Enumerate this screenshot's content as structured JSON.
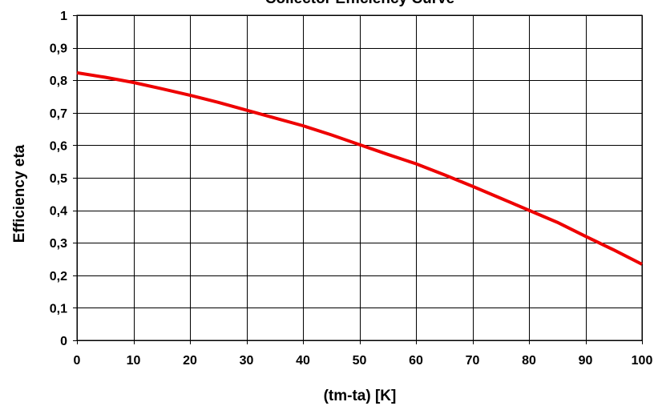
{
  "chart_data": {
    "type": "line",
    "title": "Collector Efficiency Curve",
    "xlabel": "(tm-ta) [K]",
    "ylabel": "Efficiency eta",
    "xlim": [
      0,
      100
    ],
    "ylim": [
      0,
      1
    ],
    "x_ticks": [
      0,
      10,
      20,
      30,
      40,
      50,
      60,
      70,
      80,
      90,
      100
    ],
    "x_tick_labels": [
      "0",
      "10",
      "20",
      "30",
      "40",
      "50",
      "60",
      "70",
      "80",
      "90",
      "100"
    ],
    "y_ticks": [
      0,
      0.1,
      0.2,
      0.3,
      0.4,
      0.5,
      0.6,
      0.7,
      0.8,
      0.9,
      1
    ],
    "y_tick_labels": [
      "0",
      "0,1",
      "0,2",
      "0,3",
      "0,4",
      "0,5",
      "0,6",
      "0,7",
      "0,8",
      "0,9",
      "1"
    ],
    "grid": true,
    "legend": "none",
    "series": [
      {
        "color": "#ee0000",
        "x": [
          0,
          5,
          10,
          15,
          20,
          25,
          30,
          35,
          40,
          45,
          50,
          55,
          60,
          65,
          70,
          75,
          80,
          85,
          90,
          95,
          100
        ],
        "y": [
          0.823,
          0.809,
          0.793,
          0.774,
          0.754,
          0.732,
          0.708,
          0.684,
          0.66,
          0.632,
          0.602,
          0.572,
          0.543,
          0.509,
          0.474,
          0.437,
          0.4,
          0.363,
          0.32,
          0.278,
          0.234
        ]
      }
    ]
  }
}
